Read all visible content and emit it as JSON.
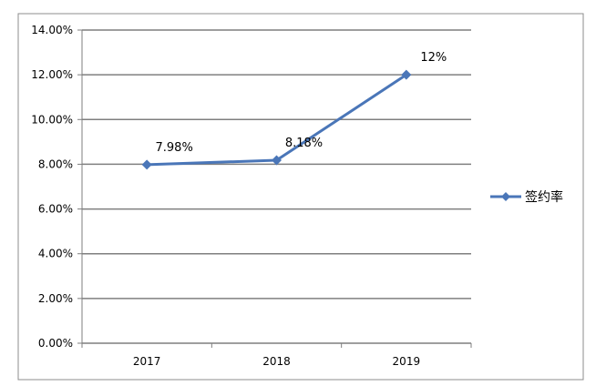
{
  "chart_data": {
    "type": "line",
    "categories": [
      "2017",
      "2018",
      "2019"
    ],
    "series": [
      {
        "name": "签约率",
        "values": [
          7.98,
          8.18,
          12.0
        ],
        "data_labels": [
          "7.98%",
          "8.18%",
          "12%"
        ],
        "color": "#4a76b8"
      }
    ],
    "ylim": [
      0,
      14
    ],
    "yticks": [
      "0.00%",
      "2.00%",
      "4.00%",
      "6.00%",
      "8.00%",
      "10.00%",
      "12.00%",
      "14.00%"
    ],
    "grid": true,
    "legend_position": "right",
    "marker": "diamond"
  }
}
